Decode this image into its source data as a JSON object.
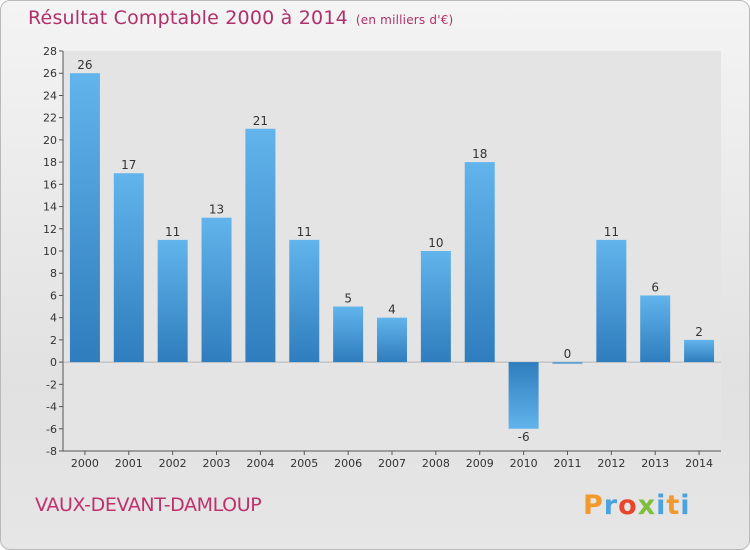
{
  "header": {
    "title": "Résultat Comptable 2000 à 2014",
    "unit": "(en milliers d'€)"
  },
  "footer": {
    "commune": "VAUX-DEVANT-DAMLOUP",
    "logo": {
      "letters": [
        "P",
        "r",
        "o",
        "x",
        "i",
        "t",
        "i"
      ],
      "colors": [
        "#f19a2b",
        "#4aa3dc",
        "#e8462c",
        "#7dbe3b",
        "#4aa3dc",
        "#f19a2b",
        "#4aa3dc"
      ]
    }
  },
  "colors": {
    "title": "#b0306a",
    "bar_light": "#5fb1ea",
    "bar_dark": "#2f7cbc",
    "axis": "#555555"
  },
  "chart_data": {
    "type": "bar",
    "title": "Résultat Comptable 2000 à 2014",
    "subtitle": "(en milliers d'€)",
    "categories": [
      "2000",
      "2001",
      "2002",
      "2003",
      "2004",
      "2005",
      "2006",
      "2007",
      "2008",
      "2009",
      "2010",
      "2011",
      "2012",
      "2013",
      "2014"
    ],
    "values": [
      26,
      17,
      11,
      13,
      21,
      11,
      5,
      4,
      10,
      18,
      -6,
      0,
      11,
      6,
      2
    ],
    "ylim": [
      -8,
      28
    ],
    "yticks": [
      28,
      26,
      24,
      22,
      20,
      18,
      16,
      14,
      12,
      10,
      8,
      6,
      4,
      2,
      0,
      -2,
      -4,
      -6,
      -8
    ],
    "grid": false,
    "data_labels": true
  }
}
